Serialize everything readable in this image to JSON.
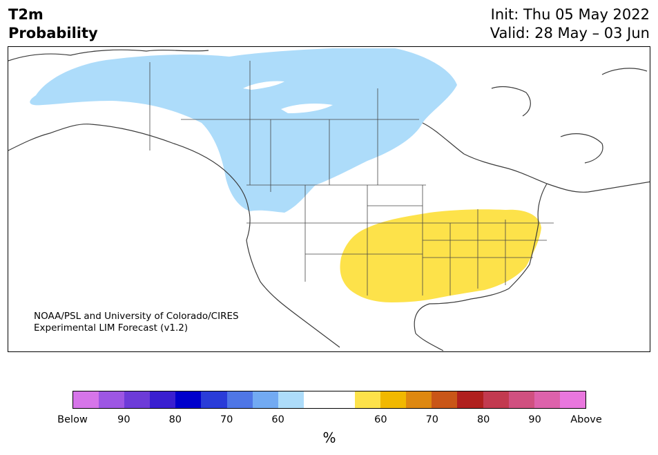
{
  "title": {
    "left_line1": "T2m",
    "left_line2": "Probability",
    "right_line1": "Init: Thu 05 May 2022",
    "right_line2": "Valid: 28 May – 03 Jun"
  },
  "credit": {
    "line1": "NOAA/PSL and University of Colorado/CIRES",
    "line2": "Experimental LIM Forecast (v1.2)"
  },
  "colors": {
    "below_60": "#addcfa",
    "above_60": "#fde24a",
    "water": "#ffffff",
    "coastline": "#3a3a3a"
  },
  "colorbar": {
    "unit": "%",
    "colors": [
      "#d675e9",
      "#9d56e3",
      "#6d3bd8",
      "#3a1fd0",
      "#0000cc",
      "#2a3cd8",
      "#4f76e6",
      "#72aaf2",
      "#addcfa",
      "#ffffff",
      "#ffffff",
      "#fde24a",
      "#f1b800",
      "#de8810",
      "#c95618",
      "#b0201e",
      "#c23a50",
      "#d05080",
      "#dd62ab",
      "#e977de"
    ],
    "ticks": [
      "Below",
      "90",
      "80",
      "70",
      "60",
      "60",
      "70",
      "80",
      "90",
      "Above"
    ]
  },
  "map": {
    "regions": [
      {
        "label": "below-normal-probability-60",
        "color": "below_60",
        "area": "Canada and northern US West"
      },
      {
        "label": "above-normal-probability-60",
        "color": "above_60",
        "area": "South-central and eastern United States"
      }
    ]
  }
}
